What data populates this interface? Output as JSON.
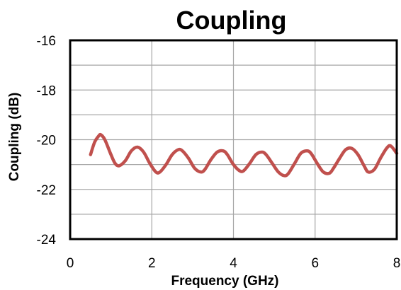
{
  "chart_data": {
    "type": "line",
    "title": "Coupling",
    "xlabel": "Frequency (GHz)",
    "ylabel": "Coupling (dB)",
    "xlim": [
      0,
      8
    ],
    "ylim": [
      -24,
      -16
    ],
    "xticks": [
      "0",
      "2",
      "4",
      "6",
      "8"
    ],
    "yticks": [
      "-16",
      "-18",
      "-20",
      "-22",
      "-24"
    ],
    "grid": true,
    "legend": "none",
    "series": [
      {
        "color": "#c0504d",
        "x": [
          0.5,
          0.6,
          0.7,
          0.75,
          0.85,
          1.0,
          1.1,
          1.2,
          1.35,
          1.5,
          1.65,
          1.8,
          1.95,
          2.1,
          2.2,
          2.35,
          2.5,
          2.65,
          2.75,
          2.9,
          3.05,
          3.2,
          3.3,
          3.45,
          3.6,
          3.75,
          3.85,
          4.0,
          4.15,
          4.25,
          4.4,
          4.55,
          4.7,
          4.8,
          4.95,
          5.1,
          5.25,
          5.35,
          5.5,
          5.65,
          5.8,
          5.9,
          6.05,
          6.2,
          6.35,
          6.45,
          6.6,
          6.75,
          6.9,
          7.05,
          7.2,
          7.3,
          7.45,
          7.6,
          7.75,
          7.85,
          8.0
        ],
        "y": [
          -20.6,
          -20.1,
          -19.85,
          -19.8,
          -20.0,
          -20.6,
          -20.95,
          -21.05,
          -20.85,
          -20.45,
          -20.3,
          -20.5,
          -20.95,
          -21.3,
          -21.3,
          -21.0,
          -20.6,
          -20.4,
          -20.45,
          -20.75,
          -21.15,
          -21.3,
          -21.2,
          -20.8,
          -20.5,
          -20.45,
          -20.6,
          -21.0,
          -21.25,
          -21.25,
          -20.95,
          -20.6,
          -20.5,
          -20.6,
          -20.95,
          -21.3,
          -21.45,
          -21.35,
          -20.95,
          -20.55,
          -20.45,
          -20.55,
          -20.95,
          -21.3,
          -21.35,
          -21.15,
          -20.75,
          -20.4,
          -20.35,
          -20.6,
          -21.05,
          -21.3,
          -21.2,
          -20.75,
          -20.35,
          -20.25,
          -20.55
        ]
      }
    ]
  }
}
